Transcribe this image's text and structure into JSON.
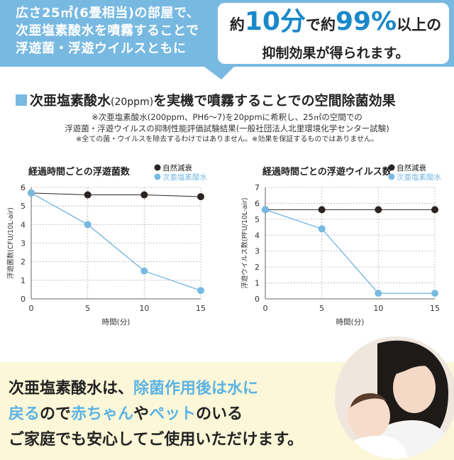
{
  "banner": {
    "left_lines": [
      "広さ25㎡(6畳相当)の部屋で、",
      "次亜塩素酸水を噴霧することで",
      "浮遊菌・浮遊ウイルスともに"
    ],
    "right_pre": "約",
    "right_big1": "10分",
    "right_mid": "で約",
    "right_big2": "99%",
    "right_post": "以上の",
    "right_line2": "抑制効果が得られます。"
  },
  "section": {
    "title_a": "次亜塩素酸水",
    "title_b": "(20ppm)",
    "title_c": "を実機で噴霧することでの空間除菌効果",
    "note1": "※次亜塩素酸水(200ppm、PH6〜7)を20ppmに希釈し、25㎡の空間での",
    "note2": "浮遊菌・浮遊ウイルスの抑制性能評価試験結果(一般社団法人北里環境化学センター試験)",
    "note3": "※全ての菌・ウイルスを除去するわけではありません。※効果を保証するものではありません。"
  },
  "colors": {
    "banner": "#78b9e2",
    "accent": "#1a88c9",
    "natural": "#2a2522",
    "treated": "#78b9e2",
    "bottom_bg": "#fbf7d8"
  },
  "chart_data": [
    {
      "type": "line",
      "title": "経過時間ごとの浮遊菌数",
      "xlabel": "時間(分)",
      "ylabel": "浮遊菌数(CFU/10L-air)",
      "x": [
        0,
        5,
        10,
        15
      ],
      "xlim": [
        0,
        15
      ],
      "ylim": [
        0,
        6
      ],
      "yticks": [
        0,
        1,
        2,
        3,
        4,
        5,
        6
      ],
      "grid": true,
      "legend": "top-right",
      "series": [
        {
          "name": "自然減衰",
          "color": "#2a2522",
          "values": [
            5.7,
            5.6,
            5.6,
            5.5
          ]
        },
        {
          "name": "次亜塩素酸水",
          "color": "#78b9e2",
          "values": [
            5.7,
            4.0,
            1.5,
            0.45
          ]
        }
      ]
    },
    {
      "type": "line",
      "title": "経過時間ごとの浮遊ウイルス数",
      "xlabel": "時間(分)",
      "ylabel": "浮遊ウイルス数(PFU/10L-air)",
      "x": [
        0,
        5,
        10,
        15
      ],
      "xlim": [
        0,
        15
      ],
      "ylim": [
        0,
        7
      ],
      "yticks": [
        0,
        1,
        2,
        3,
        4,
        5,
        6,
        7
      ],
      "grid": true,
      "legend": "top-right",
      "series": [
        {
          "name": "自然減衰",
          "color": "#2a2522",
          "values": [
            5.6,
            5.6,
            5.6,
            5.6
          ]
        },
        {
          "name": "次亜塩素酸水",
          "color": "#78b9e2",
          "values": [
            5.6,
            4.4,
            0.35,
            0.35
          ]
        }
      ]
    }
  ],
  "message": {
    "l1a": "次亜塩素酸水は、",
    "l1b": "除菌作用後は水に",
    "l2a": "戻る",
    "l2b": "ので",
    "l2c": "赤ちゃん",
    "l2d": "や",
    "l2e": "ペット",
    "l2f": "のいる",
    "l3": "ご家庭でも安心してご使用いただけます。"
  }
}
